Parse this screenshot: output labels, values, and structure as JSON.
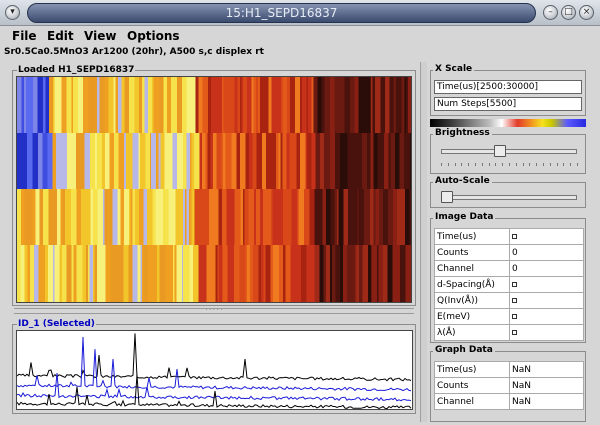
{
  "window": {
    "title": "15:H1_SEPD16837",
    "minimize_icon": "minimize-icon",
    "maximize_icon": "maximize-icon",
    "close_icon": "close-icon"
  },
  "menu": [
    "File",
    "Edit",
    "View",
    "Options"
  ],
  "subtitle": "Sr0.5Ca0.5MnO3 Ar1200 (20hr), A500 s,c displex rt",
  "loaded_panel": {
    "title": "Loaded H1_SEPD16837"
  },
  "graph_panel": {
    "title": "ID_1 (Selected)"
  },
  "x_scale": {
    "title": "X Scale",
    "time_value": "Time(us)[2500:30000]",
    "steps_value": "Num Steps[5500]"
  },
  "brightness": {
    "title": "Brightness",
    "level": 0.43
  },
  "auto_scale": {
    "title": "Auto-Scale",
    "level": 0.0
  },
  "image_data": {
    "title": "Image Data",
    "rows": [
      {
        "key": "Time(us)",
        "value": ""
      },
      {
        "key": "Counts",
        "value": "0"
      },
      {
        "key": "Channel",
        "value": "0"
      },
      {
        "key": "d-Spacing(Å)",
        "value": ""
      },
      {
        "key": "Q(Inv(Å))",
        "value": ""
      },
      {
        "key": "E(meV)",
        "value": ""
      },
      {
        "key": "λ(Å)",
        "value": ""
      }
    ]
  },
  "graph_data": {
    "title": "Graph Data",
    "rows": [
      {
        "key": "Time(us)",
        "value": "NaN"
      },
      {
        "key": "Counts",
        "value": "NaN"
      },
      {
        "key": "Channel",
        "value": "NaN"
      }
    ]
  },
  "colors": {
    "graph_blue": "#1b1bd8",
    "graph_black": "#000000",
    "selected_label": "#0000c0"
  }
}
